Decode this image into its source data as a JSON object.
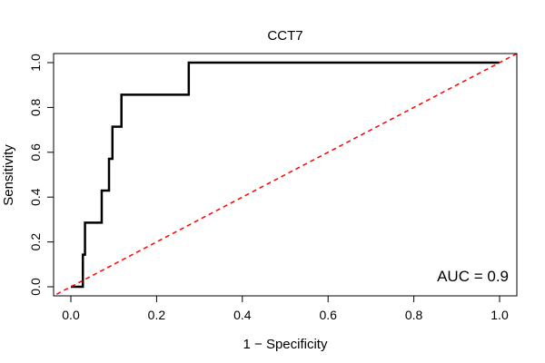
{
  "chart_data": {
    "type": "line",
    "title": "CCT7",
    "xlabel": "1 − Specificity",
    "ylabel": "Sensitivity",
    "xlim": [
      0,
      1
    ],
    "ylim": [
      0,
      1
    ],
    "x_ticks": [
      0.0,
      0.2,
      0.4,
      0.6,
      0.8,
      1.0
    ],
    "x_tick_labels": [
      "0.0",
      "0.2",
      "0.4",
      "0.6",
      "0.8",
      "1.0"
    ],
    "y_ticks": [
      0.0,
      0.2,
      0.4,
      0.6,
      0.8,
      1.0
    ],
    "y_tick_labels": [
      "0.0",
      "0.2",
      "0.4",
      "0.6",
      "0.8",
      "1.0"
    ],
    "grid": false,
    "annotation": "AUC = 0.9",
    "series": [
      {
        "name": "ROC curve",
        "color": "#000000",
        "style": "step",
        "x": [
          0.0,
          0.028,
          0.028,
          0.033,
          0.033,
          0.072,
          0.072,
          0.089,
          0.089,
          0.097,
          0.097,
          0.118,
          0.118,
          0.275,
          0.275,
          1.0
        ],
        "y": [
          0.0,
          0.0,
          0.143,
          0.143,
          0.286,
          0.286,
          0.429,
          0.429,
          0.571,
          0.571,
          0.714,
          0.714,
          0.857,
          0.857,
          1.0,
          1.0
        ]
      },
      {
        "name": "Reference diagonal",
        "color": "#ff0000",
        "style": "dashed",
        "x": [
          -0.05,
          1.05
        ],
        "y": [
          -0.05,
          1.05
        ]
      }
    ]
  }
}
